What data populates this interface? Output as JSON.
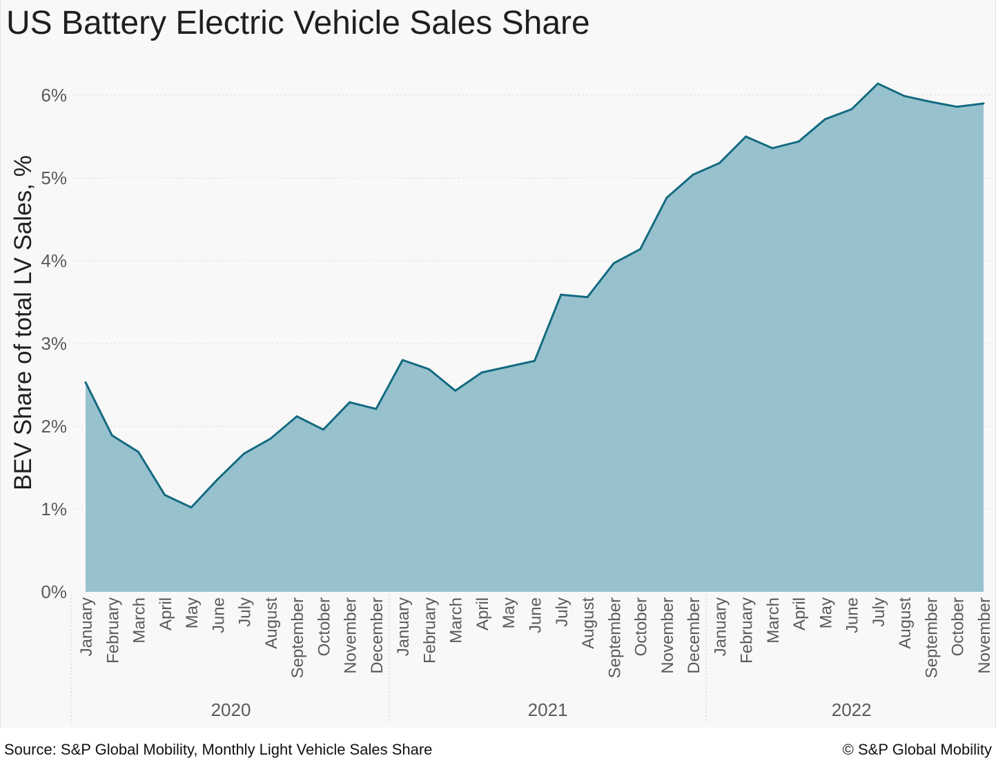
{
  "title": "US Battery Electric Vehicle Sales Share",
  "footer": {
    "source": "Source: S&P Global Mobility, Monthly Light Vehicle Sales Share",
    "copyright": "© S&P Global Mobility"
  },
  "colors": {
    "area_fill": "#98c1ce",
    "line": "#136a80",
    "grid": "#d6d6d6",
    "panel_bg": "#f8f8f8"
  },
  "chart_data": {
    "type": "area",
    "title": "US Battery Electric Vehicle Sales Share",
    "ylabel": "BEV Share of total LV Sales, %",
    "xlabel": "",
    "ylim": [
      0,
      6
    ],
    "yticks": [
      "0%",
      "1%",
      "2%",
      "3%",
      "4%",
      "5%",
      "6%"
    ],
    "grid": "horizontal dotted",
    "x": [
      "January",
      "February",
      "March",
      "April",
      "May",
      "June",
      "July",
      "August",
      "September",
      "October",
      "November",
      "December",
      "January",
      "February",
      "March",
      "April",
      "May",
      "June",
      "July",
      "August",
      "September",
      "October",
      "November",
      "December",
      "January",
      "February",
      "March",
      "April",
      "May",
      "June",
      "July",
      "August",
      "September",
      "October",
      "November"
    ],
    "year_groups": [
      {
        "label": "2020",
        "count": 12
      },
      {
        "label": "2021",
        "count": 12
      },
      {
        "label": "2022",
        "count": 11
      }
    ],
    "values": [
      2.53,
      1.89,
      1.69,
      1.17,
      1.02,
      1.36,
      1.67,
      1.85,
      2.12,
      1.96,
      2.29,
      2.21,
      2.8,
      2.69,
      2.43,
      2.65,
      2.72,
      2.79,
      3.59,
      3.56,
      3.97,
      4.14,
      4.76,
      5.04,
      5.18,
      5.5,
      5.36,
      5.44,
      5.71,
      5.83,
      6.14,
      5.99,
      5.92,
      5.86,
      5.9
    ]
  }
}
